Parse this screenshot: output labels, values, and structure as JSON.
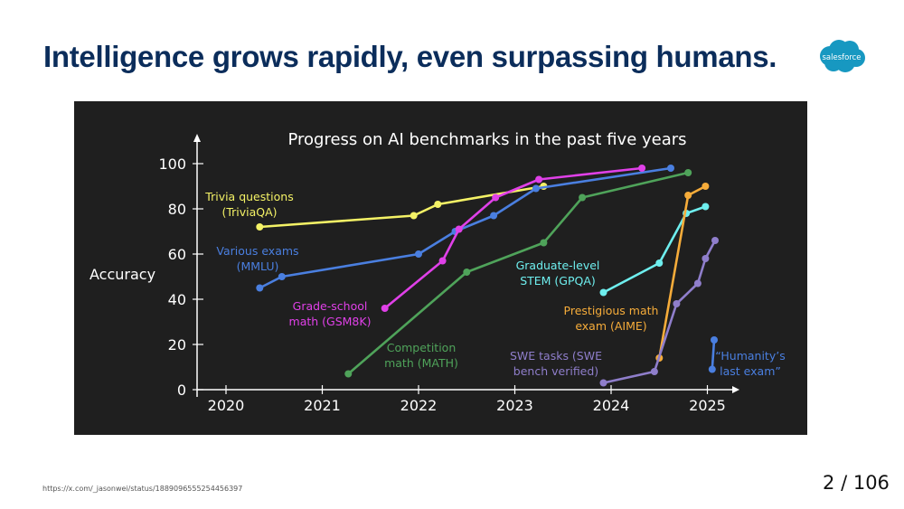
{
  "slide": {
    "title": "Intelligence grows rapidly, even surpassing humans.",
    "logo_text": "salesforce",
    "source": "https://x.com/_jasonwei/status/1889096555254456397",
    "page_current": "2",
    "page_separator": "/",
    "page_total": "106"
  },
  "colors": {
    "title": "#0b2d5b",
    "logo": "#1798c1",
    "chart_bg": "#1f1f1f"
  },
  "chart_data": {
    "type": "line",
    "title": "Progress on AI benchmarks in the past five years",
    "ylabel": "Accuracy",
    "xlabel": "",
    "xlim": [
      2019.7,
      2025.3
    ],
    "ylim": [
      0,
      100
    ],
    "xticks": [
      2020,
      2021,
      2022,
      2023,
      2024,
      2025
    ],
    "yticks": [
      0,
      20,
      40,
      60,
      80,
      100
    ],
    "grid": false,
    "series": [
      {
        "name": "Trivia questions (TriviaQA)",
        "label_lines": [
          "Trivia questions",
          "(TriviaQA)"
        ],
        "color": "#f4f266",
        "points": [
          [
            2020.35,
            72
          ],
          [
            2021.95,
            77
          ],
          [
            2022.2,
            82
          ],
          [
            2023.3,
            90
          ]
        ]
      },
      {
        "name": "Various exams (MMLU)",
        "label_lines": [
          "Various exams",
          "(MMLU)"
        ],
        "color": "#4a7fe0",
        "points": [
          [
            2020.35,
            45
          ],
          [
            2020.58,
            50
          ],
          [
            2022.0,
            60
          ],
          [
            2022.38,
            70
          ],
          [
            2022.78,
            77
          ],
          [
            2023.22,
            89
          ],
          [
            2024.62,
            98
          ]
        ]
      },
      {
        "name": "Grade-school math (GSM8K)",
        "label_lines": [
          "Grade-school",
          "math (GSM8K)"
        ],
        "color": "#e040e8",
        "points": [
          [
            2021.65,
            36
          ],
          [
            2022.25,
            57
          ],
          [
            2022.42,
            71
          ],
          [
            2022.8,
            85
          ],
          [
            2023.25,
            93
          ],
          [
            2024.32,
            98
          ]
        ]
      },
      {
        "name": "Competition math (MATH)",
        "label_lines": [
          "Competition",
          "math (MATH)"
        ],
        "color": "#4fa35a",
        "points": [
          [
            2021.27,
            7
          ],
          [
            2022.5,
            52
          ],
          [
            2023.3,
            65
          ],
          [
            2023.7,
            85
          ],
          [
            2024.8,
            96
          ]
        ]
      },
      {
        "name": "Graduate-level STEM (GPQA)",
        "label_lines": [
          "Graduate-level",
          "STEM (GPQA)"
        ],
        "color": "#6eeeee",
        "points": [
          [
            2023.92,
            43
          ],
          [
            2024.5,
            56
          ],
          [
            2024.78,
            78
          ],
          [
            2024.98,
            81
          ]
        ]
      },
      {
        "name": "Prestigious math exam (AIME)",
        "label_lines": [
          "Prestigious math",
          "exam (AIME)"
        ],
        "color": "#f6ac3a",
        "points": [
          [
            2024.5,
            14
          ],
          [
            2024.8,
            86
          ],
          [
            2024.98,
            90
          ]
        ]
      },
      {
        "name": "SWE tasks (SWE bench verified)",
        "label_lines": [
          "SWE tasks (SWE",
          "bench verified)"
        ],
        "color": "#8f7ecb",
        "points": [
          [
            2023.92,
            3
          ],
          [
            2024.45,
            8
          ],
          [
            2024.68,
            38
          ],
          [
            2024.9,
            47
          ],
          [
            2024.98,
            58
          ],
          [
            2025.08,
            66
          ]
        ]
      },
      {
        "name": "“Humanity’s last exam”",
        "label_lines": [
          "“Humanity’s",
          "last exam”"
        ],
        "color": "#4a7fe0",
        "points": [
          [
            2025.05,
            9
          ],
          [
            2025.07,
            22
          ]
        ]
      }
    ]
  }
}
